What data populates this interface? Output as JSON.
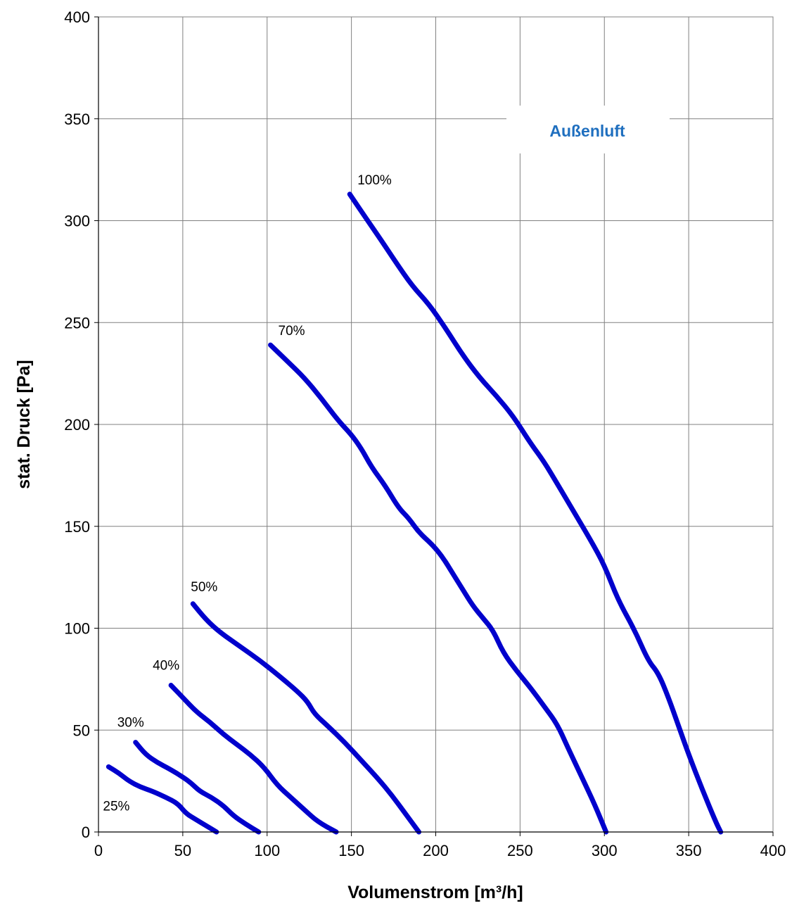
{
  "chart_data": {
    "type": "line",
    "title": "",
    "annotation": "Außenluft",
    "xlabel": "Volumenstrom [m³/h]",
    "ylabel": "stat. Druck [Pa]",
    "xlim": [
      0,
      400
    ],
    "ylim": [
      0,
      400
    ],
    "xticks": [
      "0",
      "50",
      "100",
      "150",
      "200",
      "250",
      "300",
      "350",
      "400"
    ],
    "yticks": [
      "0",
      "50",
      "100",
      "150",
      "200",
      "250",
      "300",
      "350",
      "400"
    ],
    "grid": true,
    "legend": "none",
    "series_color": "#0000cc",
    "annotation_color": "#1f6fbf",
    "series": [
      {
        "name": "25%",
        "points": [
          [
            6,
            32
          ],
          [
            12,
            29
          ],
          [
            18,
            25
          ],
          [
            25,
            22
          ],
          [
            32,
            20
          ],
          [
            40,
            17
          ],
          [
            47,
            14
          ],
          [
            52,
            9
          ],
          [
            58,
            6
          ],
          [
            64,
            3
          ],
          [
            70,
            0
          ]
        ]
      },
      {
        "name": "30%",
        "points": [
          [
            22,
            44
          ],
          [
            28,
            38
          ],
          [
            35,
            34
          ],
          [
            42,
            31
          ],
          [
            50,
            27
          ],
          [
            55,
            24
          ],
          [
            60,
            20
          ],
          [
            67,
            17
          ],
          [
            74,
            13
          ],
          [
            80,
            8
          ],
          [
            87,
            4
          ],
          [
            95,
            0
          ]
        ]
      },
      {
        "name": "40%",
        "points": [
          [
            43,
            72
          ],
          [
            50,
            66
          ],
          [
            58,
            59
          ],
          [
            66,
            54
          ],
          [
            74,
            48
          ],
          [
            82,
            43
          ],
          [
            90,
            38
          ],
          [
            98,
            32
          ],
          [
            106,
            23
          ],
          [
            114,
            17
          ],
          [
            122,
            11
          ],
          [
            130,
            5
          ],
          [
            141,
            0
          ]
        ]
      },
      {
        "name": "50%",
        "points": [
          [
            56,
            112
          ],
          [
            64,
            104
          ],
          [
            72,
            98
          ],
          [
            84,
            91
          ],
          [
            96,
            84
          ],
          [
            108,
            76
          ],
          [
            118,
            69
          ],
          [
            124,
            64
          ],
          [
            128,
            58
          ],
          [
            136,
            52
          ],
          [
            146,
            44
          ],
          [
            156,
            35
          ],
          [
            166,
            26
          ],
          [
            174,
            18
          ],
          [
            182,
            9
          ],
          [
            190,
            0
          ]
        ]
      },
      {
        "name": "70%",
        "points": [
          [
            102,
            239
          ],
          [
            112,
            231
          ],
          [
            122,
            223
          ],
          [
            132,
            213
          ],
          [
            142,
            202
          ],
          [
            150,
            195
          ],
          [
            156,
            188
          ],
          [
            162,
            179
          ],
          [
            170,
            170
          ],
          [
            178,
            159
          ],
          [
            184,
            154
          ],
          [
            190,
            147
          ],
          [
            198,
            141
          ],
          [
            204,
            135
          ],
          [
            210,
            127
          ],
          [
            216,
            119
          ],
          [
            222,
            111
          ],
          [
            228,
            105
          ],
          [
            234,
            99
          ],
          [
            240,
            88
          ],
          [
            248,
            79
          ],
          [
            256,
            71
          ],
          [
            264,
            62
          ],
          [
            272,
            53
          ],
          [
            278,
            42
          ],
          [
            286,
            28
          ],
          [
            294,
            14
          ],
          [
            301,
            0
          ]
        ]
      },
      {
        "name": "100%",
        "points": [
          [
            149,
            313
          ],
          [
            158,
            302
          ],
          [
            168,
            290
          ],
          [
            176,
            280
          ],
          [
            186,
            268
          ],
          [
            196,
            259
          ],
          [
            206,
            247
          ],
          [
            216,
            234
          ],
          [
            226,
            223
          ],
          [
            236,
            214
          ],
          [
            246,
            204
          ],
          [
            256,
            191
          ],
          [
            264,
            182
          ],
          [
            272,
            171
          ],
          [
            282,
            157
          ],
          [
            292,
            143
          ],
          [
            300,
            131
          ],
          [
            308,
            114
          ],
          [
            318,
            99
          ],
          [
            326,
            84
          ],
          [
            332,
            78
          ],
          [
            338,
            66
          ],
          [
            344,
            52
          ],
          [
            350,
            38
          ],
          [
            358,
            21
          ],
          [
            366,
            5
          ],
          [
            369,
            0
          ]
        ]
      }
    ]
  }
}
